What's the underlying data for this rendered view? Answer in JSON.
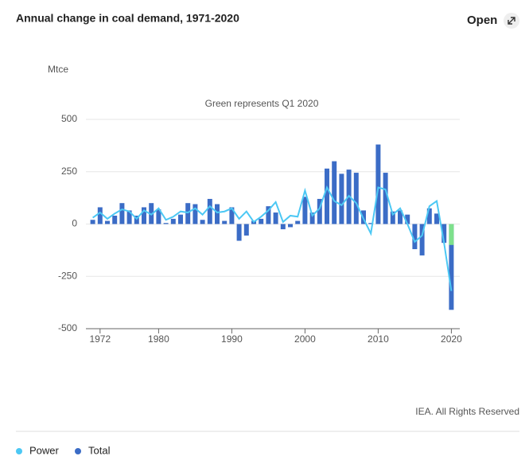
{
  "chart_data": {
    "type": "bar-line",
    "title": "Annual change in coal demand, 1971-2020",
    "open_label": "Open",
    "y_label": "Mtce",
    "annotation": "Green represents Q1 2020",
    "source": "IEA. All Rights Reserved",
    "x": [
      1971,
      1972,
      1973,
      1974,
      1975,
      1976,
      1977,
      1978,
      1979,
      1980,
      1981,
      1982,
      1983,
      1984,
      1985,
      1986,
      1987,
      1988,
      1989,
      1990,
      1991,
      1992,
      1993,
      1994,
      1995,
      1996,
      1997,
      1998,
      1999,
      2000,
      2001,
      2002,
      2003,
      2004,
      2005,
      2006,
      2007,
      2008,
      2009,
      2010,
      2011,
      2012,
      2013,
      2014,
      2015,
      2016,
      2017,
      2018,
      2019,
      2020
    ],
    "series": [
      {
        "name": "Power",
        "color": "#4cc8f4",
        "kind": "line",
        "values": [
          30,
          55,
          25,
          50,
          70,
          60,
          25,
          65,
          45,
          75,
          20,
          35,
          60,
          55,
          75,
          45,
          85,
          55,
          60,
          75,
          25,
          60,
          10,
          35,
          65,
          105,
          10,
          40,
          35,
          160,
          40,
          75,
          175,
          110,
          90,
          135,
          100,
          25,
          -45,
          175,
          165,
          45,
          75,
          0,
          -85,
          -55,
          85,
          110,
          -90,
          -320
        ]
      },
      {
        "name": "Total",
        "color": "#3b6cc6",
        "kind": "bar",
        "values": [
          20,
          80,
          15,
          40,
          100,
          65,
          40,
          80,
          100,
          70,
          5,
          25,
          45,
          100,
          95,
          20,
          120,
          95,
          15,
          80,
          -80,
          -55,
          15,
          25,
          85,
          55,
          -25,
          -15,
          15,
          130,
          55,
          120,
          265,
          300,
          240,
          260,
          245,
          65,
          5,
          380,
          245,
          60,
          65,
          45,
          -120,
          -150,
          75,
          50,
          -90,
          -410
        ]
      }
    ],
    "q1_2020_value": -100,
    "q1_2020_color": "#7ee08c",
    "xlim": [
      1970.5,
      2020.5
    ],
    "xticks": [
      1972,
      1980,
      1990,
      2000,
      2010,
      2020
    ],
    "ylim": [
      -500,
      500
    ],
    "yticks": [
      -500,
      -250,
      0,
      250,
      500
    ],
    "grid": true
  }
}
